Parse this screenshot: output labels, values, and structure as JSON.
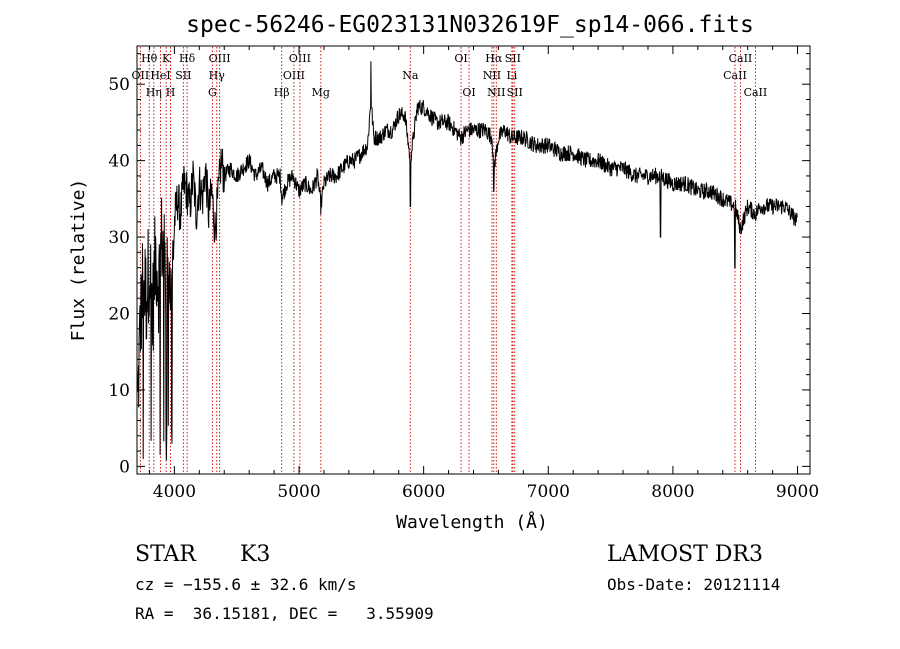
{
  "chart_data": {
    "type": "line",
    "title": "spec-56246-EG023131N032619F_sp14-066.fits",
    "xlabel": "Wavelength (Å)",
    "ylabel": "Flux (relative)",
    "xlim": [
      3700,
      9100
    ],
    "ylim": [
      -1,
      55
    ],
    "xticks": [
      4000,
      5000,
      6000,
      7000,
      8000,
      9000
    ],
    "yticks": [
      0,
      10,
      20,
      30,
      40,
      50
    ],
    "grid": false,
    "line_color": "#000000",
    "marker_color": "#cc0000",
    "spectrum_anchors": {
      "x": [
        3700,
        3725,
        3750,
        3775,
        3800,
        3825,
        3850,
        3875,
        3900,
        3925,
        3950,
        3975,
        4000,
        4025,
        4050,
        4075,
        4100,
        4125,
        4150,
        4175,
        4200,
        4225,
        4250,
        4275,
        4300,
        4325,
        4350,
        4375,
        4400,
        4450,
        4500,
        4550,
        4600,
        4650,
        4700,
        4750,
        4800,
        4850,
        4861,
        4900,
        4950,
        5000,
        5050,
        5100,
        5150,
        5175,
        5200,
        5250,
        5300,
        5350,
        5400,
        5450,
        5500,
        5550,
        5577,
        5600,
        5650,
        5700,
        5750,
        5800,
        5850,
        5893,
        5950,
        6000,
        6050,
        6100,
        6150,
        6200,
        6250,
        6300,
        6350,
        6400,
        6450,
        6500,
        6550,
        6563,
        6600,
        6650,
        6700,
        6750,
        6800,
        6900,
        7000,
        7100,
        7200,
        7300,
        7400,
        7500,
        7600,
        7700,
        7800,
        7900,
        8000,
        8100,
        8200,
        8300,
        8400,
        8500,
        8542,
        8600,
        8662,
        8700,
        8800,
        8900,
        9000
      ],
      "y": [
        5,
        18,
        25,
        22,
        27,
        20,
        28,
        24,
        30,
        25,
        28,
        22,
        32,
        35,
        33,
        37,
        36,
        34,
        38,
        33,
        37,
        35,
        39,
        33,
        36,
        31,
        35,
        40,
        38,
        39,
        38,
        39,
        40,
        38,
        39,
        37,
        38,
        38,
        35,
        37,
        38,
        36,
        37,
        36,
        38,
        34,
        37,
        38,
        38,
        39,
        40,
        40,
        41,
        42,
        48,
        43,
        43,
        44,
        44,
        46,
        46,
        40,
        47,
        47,
        46,
        45,
        45,
        45,
        44,
        43,
        44,
        44,
        44,
        44,
        43,
        39,
        43,
        44,
        43,
        43,
        43,
        42,
        42,
        41,
        41,
        40,
        40,
        39,
        39,
        38,
        38,
        38,
        37,
        37,
        36,
        36,
        35,
        34,
        31,
        34,
        33,
        34,
        34,
        34,
        32
      ]
    },
    "line_markers": [
      {
        "label": "Hθ",
        "wavelength": 3798,
        "row": 1
      },
      {
        "label": "OII",
        "wavelength": 3727,
        "row": 2
      },
      {
        "label": "Hη",
        "wavelength": 3835,
        "row": 3
      },
      {
        "label": "HeI",
        "wavelength": 3889,
        "row": 2
      },
      {
        "label": "K",
        "wavelength": 3934,
        "row": 1
      },
      {
        "label": "H",
        "wavelength": 3969,
        "row": 3
      },
      {
        "label": "Hδ",
        "wavelength": 4102,
        "row": 1
      },
      {
        "label": "SII",
        "wavelength": 4072,
        "row": 2
      },
      {
        "label": "OIII",
        "wavelength": 4363,
        "row": 1
      },
      {
        "label": "Hγ",
        "wavelength": 4340,
        "row": 2
      },
      {
        "label": "G",
        "wavelength": 4305,
        "row": 3
      },
      {
        "label": "Hβ",
        "wavelength": 4861,
        "row": 3
      },
      {
        "label": "OIII",
        "wavelength": 5007,
        "row": 1
      },
      {
        "label": "OIII",
        "wavelength": 4959,
        "row": 2
      },
      {
        "label": "Mg",
        "wavelength": 5175,
        "row": 3
      },
      {
        "label": "Na",
        "wavelength": 5893,
        "row": 2
      },
      {
        "label": "OI",
        "wavelength": 6300,
        "row": 1
      },
      {
        "label": "OI",
        "wavelength": 6364,
        "row": 3
      },
      {
        "label": "Hα",
        "wavelength": 6563,
        "row": 1
      },
      {
        "label": "NII",
        "wavelength": 6548,
        "row": 2
      },
      {
        "label": "NII",
        "wavelength": 6583,
        "row": 3
      },
      {
        "label": "SII",
        "wavelength": 6716,
        "row": 1
      },
      {
        "label": "Li",
        "wavelength": 6708,
        "row": 2
      },
      {
        "label": "SII",
        "wavelength": 6731,
        "row": 3
      },
      {
        "label": "CaII",
        "wavelength": 8542,
        "row": 1
      },
      {
        "label": "CaII",
        "wavelength": 8498,
        "row": 2
      },
      {
        "label": "CaII",
        "wavelength": 8662,
        "row": 3
      }
    ]
  },
  "info": {
    "class_label": "STAR",
    "subclass_label": "K3",
    "survey": "LAMOST DR3",
    "cz": "cz = −155.6 ± 32.6 km/s",
    "obs_date": "Obs-Date: 20121114",
    "coords": "RA =  36.15181, DEC =   3.55909"
  }
}
